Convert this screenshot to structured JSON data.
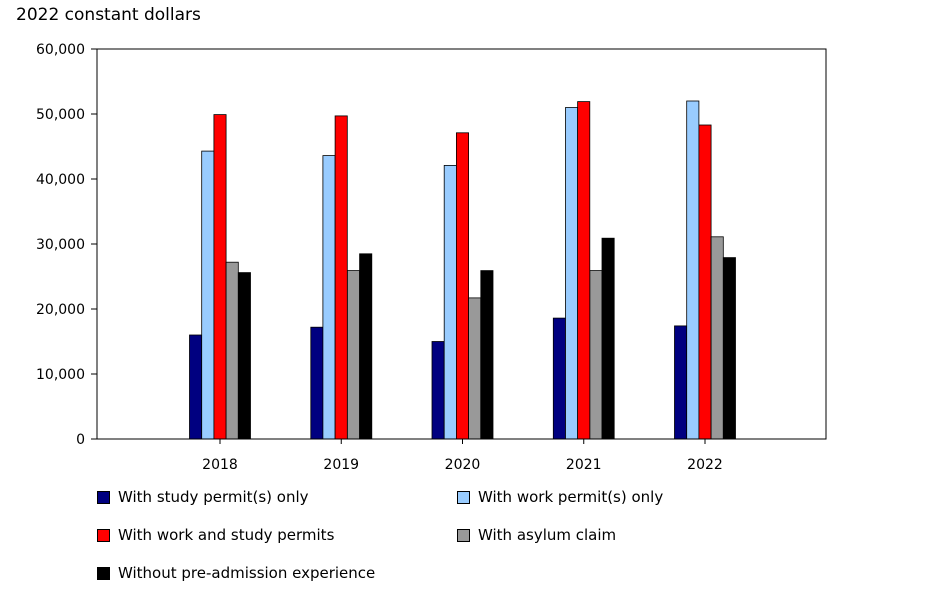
{
  "chart_data": {
    "type": "bar",
    "ylabel": "2022 constant dollars",
    "xlabel": "",
    "ylim": [
      0,
      60000
    ],
    "yticks": [
      {
        "value": 0,
        "label": "0"
      },
      {
        "value": 10000,
        "label": "10,000"
      },
      {
        "value": 20000,
        "label": "20,000"
      },
      {
        "value": 30000,
        "label": "30,000"
      },
      {
        "value": 40000,
        "label": "40,000"
      },
      {
        "value": 50000,
        "label": "50,000"
      },
      {
        "value": 60000,
        "label": "60,000"
      }
    ],
    "categories": [
      "2018",
      "2019",
      "2020",
      "2021",
      "2022"
    ],
    "grid": false,
    "legend_position": "bottom",
    "series": [
      {
        "name": "With study permit(s) only",
        "color": "#000080",
        "values": [
          16000,
          17200,
          15000,
          18600,
          17400
        ]
      },
      {
        "name": "With work permit(s) only",
        "color": "#99ccff",
        "values": [
          44300,
          43600,
          42100,
          51000,
          52000
        ]
      },
      {
        "name": "With work and study permits",
        "color": "#ff0000",
        "values": [
          49900,
          49700,
          47100,
          51900,
          48300
        ]
      },
      {
        "name": "With asylum claim",
        "color": "#999999",
        "values": [
          27200,
          25900,
          21700,
          25900,
          31100
        ]
      },
      {
        "name": "Without pre-admission experience",
        "color": "#000000",
        "values": [
          25600,
          28500,
          25900,
          30900,
          27900
        ]
      }
    ]
  }
}
